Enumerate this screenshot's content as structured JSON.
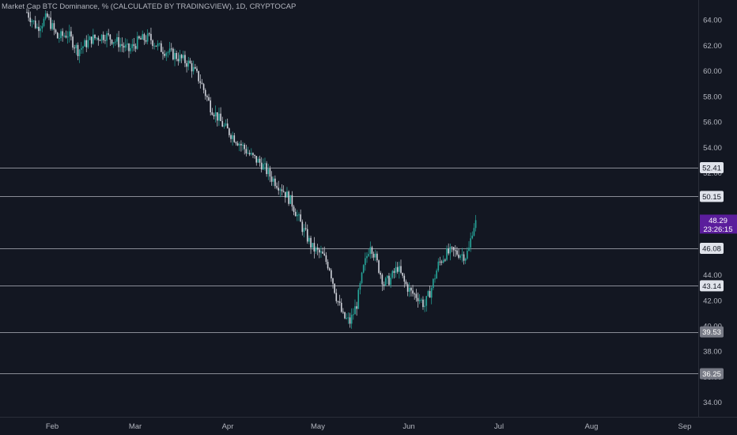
{
  "header": {
    "title": "Market Cap BTC Dominance, % (CALCULATED BY TRADINGVIEW), 1D, CRYPTOCAP"
  },
  "colors": {
    "background": "#131722",
    "up": "#26a69a",
    "down": "#d1d4dc",
    "hline": "#b2b5be",
    "axis_text": "#b2b5be",
    "current_label_bg": "#5b1d9c",
    "level_label_bg": "#e0e3eb",
    "level_label_dark_bg": "#787b86"
  },
  "chart_data": {
    "type": "candlestick",
    "title": "Market Cap BTC Dominance, % (CALCULATED BY TRADINGVIEW), 1D, CRYPTOCAP",
    "y_axis": {
      "ticks": [
        "34.00",
        "36.00",
        "38.00",
        "40.00",
        "42.00",
        "44.00",
        "46.00",
        "48.00",
        "50.00",
        "52.00",
        "54.00",
        "56.00",
        "58.00",
        "60.00",
        "62.00",
        "64.00"
      ],
      "range": [
        32.6,
        66.0
      ]
    },
    "x_axis": {
      "labels": [
        "Feb",
        "Mar",
        "Apr",
        "May",
        "Jun",
        "Jul",
        "Aug",
        "Sep"
      ]
    },
    "horizontal_levels": [
      {
        "value": 52.41,
        "label": "52.41",
        "style": "light"
      },
      {
        "value": 50.15,
        "label": "50.15",
        "style": "light"
      },
      {
        "value": 46.08,
        "label": "46.08",
        "style": "light"
      },
      {
        "value": 43.14,
        "label": "43.14",
        "style": "light"
      },
      {
        "value": 39.53,
        "label": "39.53",
        "style": "dark"
      },
      {
        "value": 36.25,
        "label": "36.25",
        "style": "dark"
      }
    ],
    "current": {
      "value": 48.29,
      "label": "48.29",
      "countdown": "23:26:15"
    },
    "waypoints": [
      [
        0,
        64.6
      ],
      [
        6,
        63.4
      ],
      [
        12,
        64.2
      ],
      [
        18,
        62.6
      ],
      [
        24,
        62.9
      ],
      [
        30,
        61.6
      ],
      [
        38,
        62.5
      ],
      [
        46,
        62.8
      ],
      [
        54,
        62.2
      ],
      [
        60,
        61.6
      ],
      [
        66,
        62.4
      ],
      [
        72,
        62.6
      ],
      [
        78,
        61.8
      ],
      [
        84,
        61.4
      ],
      [
        90,
        61.0
      ],
      [
        96,
        60.5
      ],
      [
        102,
        59.2
      ],
      [
        108,
        57.2
      ],
      [
        116,
        55.6
      ],
      [
        124,
        54.5
      ],
      [
        132,
        53.3
      ],
      [
        138,
        52.7
      ],
      [
        144,
        51.6
      ],
      [
        150,
        50.8
      ],
      [
        156,
        49.6
      ],
      [
        162,
        47.7
      ],
      [
        168,
        46.1
      ],
      [
        174,
        45.5
      ],
      [
        178,
        44.6
      ],
      [
        182,
        42.3
      ],
      [
        186,
        40.7
      ],
      [
        190,
        40.3
      ],
      [
        194,
        41.7
      ],
      [
        198,
        44.5
      ],
      [
        202,
        46.5
      ],
      [
        206,
        44.9
      ],
      [
        210,
        43.3
      ],
      [
        214,
        43.7
      ],
      [
        218,
        44.6
      ],
      [
        222,
        43.4
      ],
      [
        226,
        42.6
      ],
      [
        230,
        42.3
      ],
      [
        234,
        41.6
      ],
      [
        238,
        43.0
      ],
      [
        242,
        44.8
      ],
      [
        246,
        45.6
      ],
      [
        250,
        45.8
      ],
      [
        254,
        45.7
      ],
      [
        258,
        45.5
      ],
      [
        260,
        46.0
      ],
      [
        262,
        47.5
      ],
      [
        264,
        48.29
      ]
    ]
  }
}
